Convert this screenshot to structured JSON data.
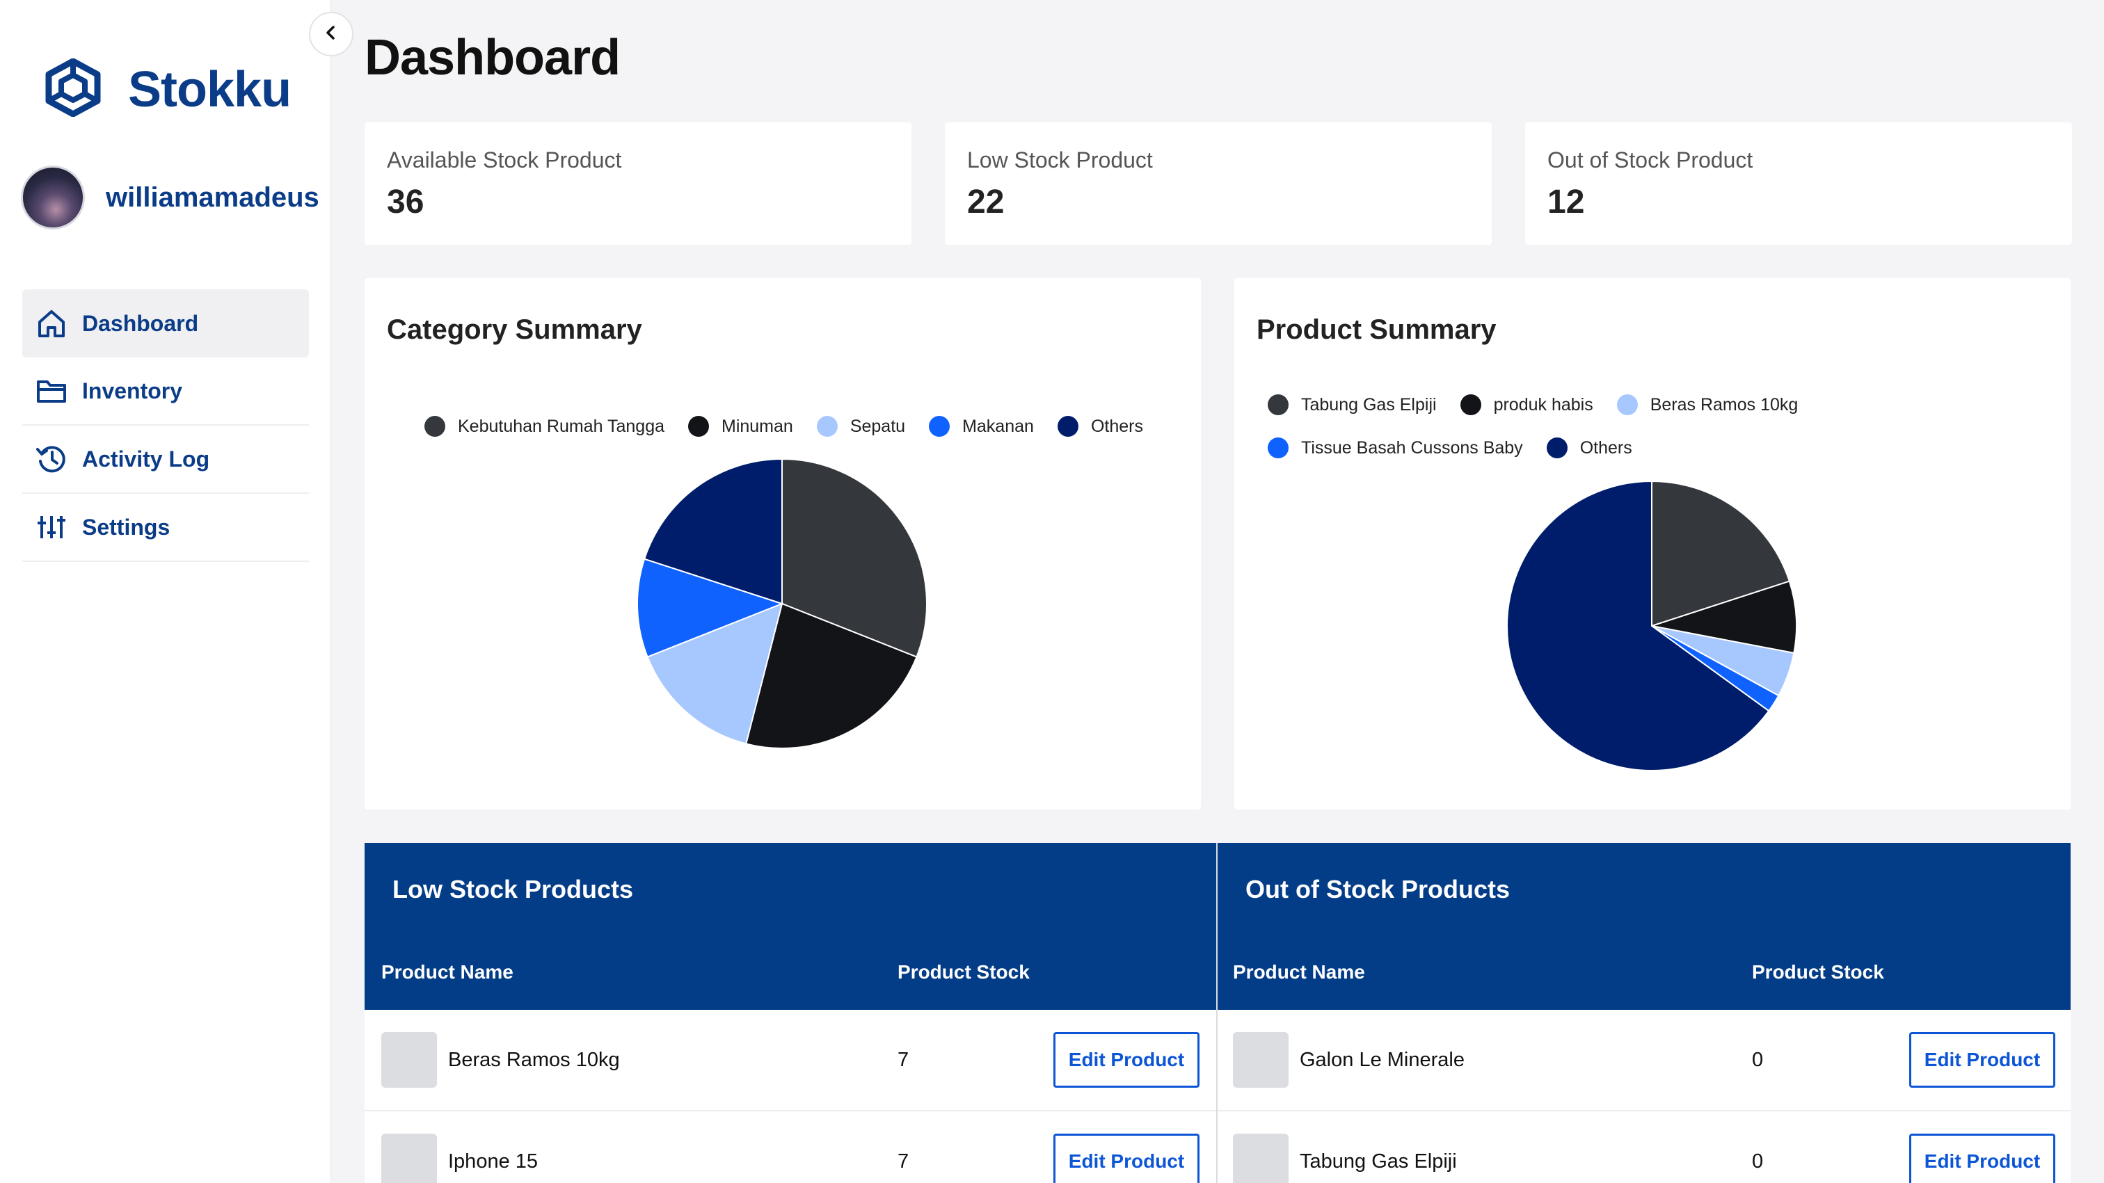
{
  "brand": {
    "name": "Stokku"
  },
  "user": {
    "username": "williamamadeus"
  },
  "nav": {
    "items": [
      {
        "label": "Dashboard",
        "icon": "home-icon",
        "active": true
      },
      {
        "label": "Inventory",
        "icon": "folder-icon",
        "active": false
      },
      {
        "label": "Activity Log",
        "icon": "history-icon",
        "active": false
      },
      {
        "label": "Settings",
        "icon": "sliders-icon",
        "active": false
      }
    ]
  },
  "page": {
    "title": "Dashboard"
  },
  "stats": [
    {
      "label": "Available Stock Product",
      "value": "36"
    },
    {
      "label": "Low Stock Product",
      "value": "22"
    },
    {
      "label": "Out of Stock Product",
      "value": "12"
    }
  ],
  "colors": {
    "brand": "#0b3c88",
    "table_header": "#043d87",
    "button": "#0c56d6",
    "slice1": "#34373c",
    "slice2": "#121417",
    "slice3": "#a6c8ff",
    "slice4": "#0f62fe",
    "slice5": "#001d6c"
  },
  "chart_data": [
    {
      "type": "pie",
      "title": "Category Summary",
      "categories": [
        "Kebutuhan Rumah Tangga",
        "Minuman",
        "Sepatu",
        "Makanan",
        "Others"
      ],
      "values": [
        31,
        23,
        15,
        11,
        20
      ],
      "legend": "top"
    },
    {
      "type": "pie",
      "title": "Product Summary",
      "categories": [
        "Tabung Gas Elpiji",
        "produk habis",
        "Beras Ramos 10kg",
        "Tissue Basah Cussons Baby",
        "Others"
      ],
      "values": [
        20,
        8,
        5,
        2,
        65
      ],
      "legend": "top"
    }
  ],
  "tables": {
    "low_stock": {
      "title": "Low Stock Products",
      "col_name": "Product Name",
      "col_stock": "Product Stock",
      "rows": [
        {
          "name": "Beras Ramos 10kg",
          "stock": "7",
          "action": "Edit Product"
        },
        {
          "name": "Iphone 15",
          "stock": "7",
          "action": "Edit Product"
        }
      ]
    },
    "out_of_stock": {
      "title": "Out of Stock Products",
      "col_name": "Product Name",
      "col_stock": "Product Stock",
      "rows": [
        {
          "name": "Galon Le Minerale",
          "stock": "0",
          "action": "Edit Product"
        },
        {
          "name": "Tabung Gas Elpiji",
          "stock": "0",
          "action": "Edit Product"
        }
      ]
    }
  }
}
